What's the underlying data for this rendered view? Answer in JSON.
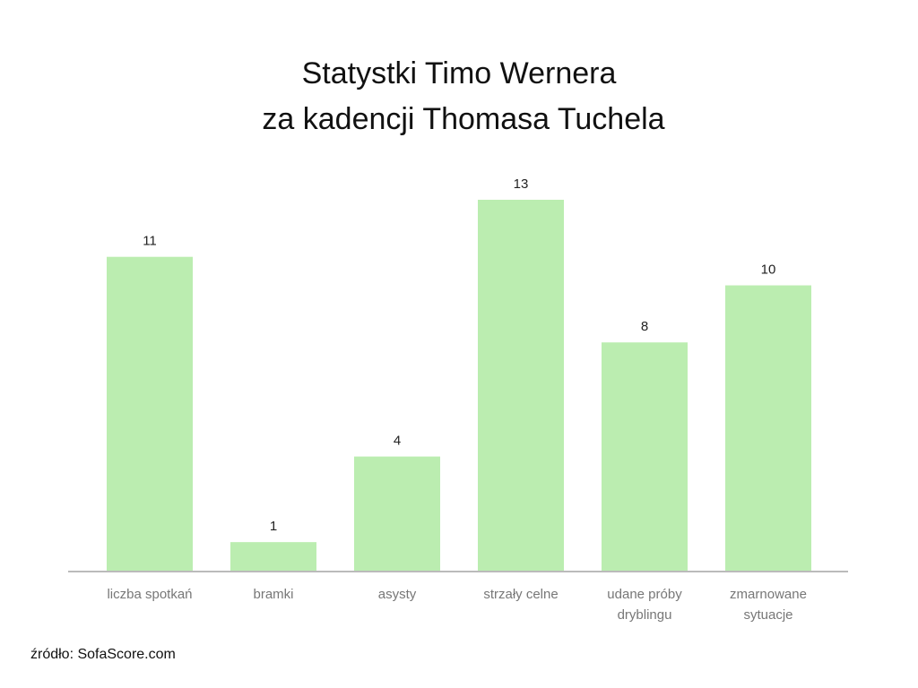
{
  "chart_data": {
    "type": "bar",
    "title": [
      "Statystki Timo Wernera",
      "za kadencji Thomasa Tuchela"
    ],
    "categories": [
      "liczba spotkań",
      "bramki",
      "asysty",
      "strzały celne",
      "udane próby dryblingu",
      "zmarnowane sytuacje"
    ],
    "values": [
      11,
      1,
      4,
      13,
      8,
      10
    ],
    "color": "#bbedb0",
    "source": "źródło: SofaScore.com"
  }
}
